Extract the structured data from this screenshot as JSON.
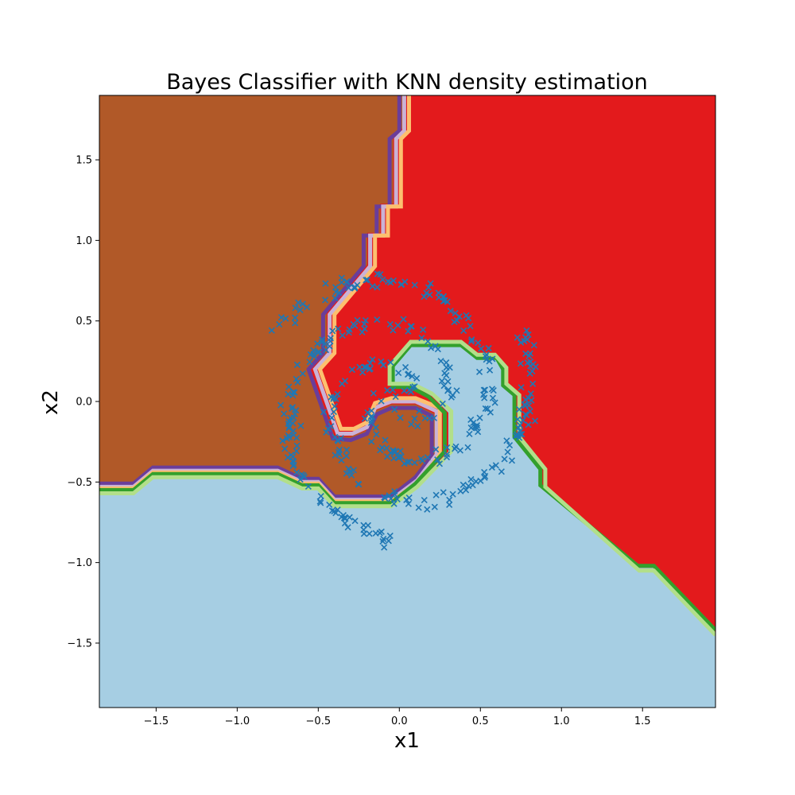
{
  "chart_data": {
    "type": "scatter",
    "title": "Bayes Classifier with KNN density estimation",
    "xlabel": "x1",
    "ylabel": "x2",
    "xlim": [
      -1.85,
      1.95
    ],
    "ylim": [
      -1.9,
      1.9
    ],
    "xticks": [
      -1.5,
      -1.0,
      -0.5,
      0.0,
      0.5,
      1.0,
      1.5
    ],
    "yticks": [
      -1.5,
      -1.0,
      -0.5,
      0.0,
      0.5,
      1.0,
      1.5
    ],
    "xtick_labels": [
      "−1.5",
      "−1.0",
      "−0.5",
      "0.0",
      "0.5",
      "1.0",
      "1.5"
    ],
    "ytick_labels": [
      "−1.5",
      "−1.0",
      "−0.5",
      "0.0",
      "0.5",
      "1.0",
      "1.5"
    ],
    "grid": false,
    "marker": "x",
    "colors": {
      "point": "#1f77b4",
      "region_light_blue": "#a6cee3",
      "region_red": "#e31a1c",
      "region_brown": "#b15928",
      "boundary_purple": "#6a3d9a",
      "boundary_lavender": "#cab2d6",
      "boundary_peach": "#fdbf6f",
      "boundary_green": "#33a02c",
      "boundary_light_green": "#b2df8a"
    },
    "regions": {
      "light_blue": [
        [
          -1.85,
          -1.9
        ],
        [
          -1.85,
          -0.56
        ],
        [
          -1.64,
          -0.56
        ],
        [
          -1.52,
          -0.46
        ],
        [
          -0.75,
          -0.46
        ],
        [
          -0.6,
          -0.53
        ],
        [
          -0.5,
          -0.53
        ],
        [
          -0.4,
          -0.64
        ],
        [
          -0.05,
          -0.64
        ],
        [
          0.1,
          -0.52
        ],
        [
          0.3,
          -0.31
        ],
        [
          0.3,
          -0.07
        ],
        [
          0.2,
          0.03
        ],
        [
          0.08,
          0.1
        ],
        [
          -0.05,
          0.1
        ],
        [
          -0.05,
          0.22
        ],
        [
          0.07,
          0.36
        ],
        [
          0.38,
          0.36
        ],
        [
          0.48,
          0.28
        ],
        [
          0.6,
          0.28
        ],
        [
          0.65,
          0.2
        ],
        [
          0.65,
          0.1
        ],
        [
          0.72,
          0.04
        ],
        [
          0.72,
          -0.22
        ],
        [
          0.88,
          -0.42
        ],
        [
          0.88,
          -0.52
        ],
        [
          1.47,
          -1.03
        ],
        [
          1.57,
          -1.03
        ],
        [
          1.95,
          -1.43
        ],
        [
          1.95,
          -1.9
        ]
      ],
      "red": [
        [
          0.02,
          1.9
        ],
        [
          1.95,
          1.9
        ],
        [
          1.95,
          -1.43
        ],
        [
          1.57,
          -1.03
        ],
        [
          1.47,
          -1.03
        ],
        [
          0.88,
          -0.52
        ],
        [
          0.88,
          -0.42
        ],
        [
          0.72,
          -0.22
        ],
        [
          0.72,
          0.04
        ],
        [
          0.65,
          0.1
        ],
        [
          0.65,
          0.2
        ],
        [
          0.6,
          0.28
        ],
        [
          0.48,
          0.28
        ],
        [
          0.38,
          0.36
        ],
        [
          0.07,
          0.36
        ],
        [
          -0.05,
          0.22
        ],
        [
          -0.05,
          0.1
        ],
        [
          0.08,
          0.1
        ],
        [
          0.2,
          0.03
        ],
        [
          0.3,
          -0.07
        ],
        [
          0.3,
          -0.31
        ],
        [
          0.1,
          -0.52
        ],
        [
          -0.05,
          -0.64
        ],
        [
          -0.4,
          -0.64
        ],
        [
          -0.5,
          -0.53
        ],
        [
          -0.6,
          -0.53
        ],
        [
          -0.75,
          -0.46
        ],
        [
          -1.52,
          -0.46
        ],
        [
          -1.64,
          -0.56
        ],
        [
          -1.85,
          -0.56
        ],
        [
          -1.85,
          -0.52
        ],
        [
          -1.64,
          -0.52
        ],
        [
          -1.52,
          -0.42
        ],
        [
          -0.75,
          -0.42
        ],
        [
          -0.6,
          -0.49
        ],
        [
          -0.5,
          -0.49
        ],
        [
          -0.4,
          -0.6
        ],
        [
          -0.05,
          -0.6
        ],
        [
          0.1,
          -0.48
        ],
        [
          0.22,
          -0.33
        ],
        [
          0.22,
          -0.08
        ],
        [
          0.1,
          -0.02
        ],
        [
          -0.05,
          -0.02
        ],
        [
          -0.15,
          -0.06
        ],
        [
          -0.2,
          -0.18
        ],
        [
          -0.3,
          -0.22
        ],
        [
          -0.4,
          -0.22
        ],
        [
          -0.55,
          0.2
        ],
        [
          -0.45,
          0.3
        ],
        [
          -0.45,
          0.55
        ],
        [
          -0.2,
          0.85
        ],
        [
          -0.2,
          1.05
        ],
        [
          -0.12,
          1.05
        ],
        [
          -0.12,
          1.23
        ],
        [
          -0.04,
          1.23
        ],
        [
          -0.04,
          1.65
        ],
        [
          0.02,
          1.7
        ]
      ],
      "brown": [
        [
          -1.85,
          1.9
        ],
        [
          0.02,
          1.9
        ],
        [
          0.02,
          1.7
        ],
        [
          -0.04,
          1.65
        ],
        [
          -0.04,
          1.23
        ],
        [
          -0.12,
          1.23
        ],
        [
          -0.12,
          1.05
        ],
        [
          -0.2,
          1.05
        ],
        [
          -0.2,
          0.85
        ],
        [
          -0.45,
          0.55
        ],
        [
          -0.45,
          0.3
        ],
        [
          -0.55,
          0.2
        ],
        [
          -0.4,
          -0.22
        ],
        [
          -0.3,
          -0.22
        ],
        [
          -0.2,
          -0.18
        ],
        [
          -0.15,
          -0.06
        ],
        [
          -0.05,
          -0.02
        ],
        [
          0.1,
          -0.02
        ],
        [
          0.22,
          -0.08
        ],
        [
          0.22,
          -0.33
        ],
        [
          0.1,
          -0.48
        ],
        [
          -0.05,
          -0.6
        ],
        [
          -0.4,
          -0.6
        ],
        [
          -0.5,
          -0.49
        ],
        [
          -0.6,
          -0.49
        ],
        [
          -0.75,
          -0.42
        ],
        [
          -1.52,
          -0.42
        ],
        [
          -1.64,
          -0.52
        ],
        [
          -1.85,
          -0.52
        ]
      ]
    },
    "boundaries": [
      {
        "color_key": "boundary_purple",
        "points": [
          [
            0.0,
            1.9
          ],
          [
            0.0,
            1.68
          ],
          [
            -0.06,
            1.63
          ],
          [
            -0.06,
            1.21
          ],
          [
            -0.14,
            1.21
          ],
          [
            -0.14,
            1.03
          ],
          [
            -0.22,
            1.03
          ],
          [
            -0.22,
            0.84
          ],
          [
            -0.47,
            0.54
          ],
          [
            -0.47,
            0.3
          ],
          [
            -0.56,
            0.2
          ],
          [
            -0.41,
            -0.23
          ],
          [
            -0.3,
            -0.24
          ],
          [
            -0.2,
            -0.2
          ],
          [
            -0.14,
            -0.08
          ],
          [
            -0.05,
            -0.04
          ],
          [
            0.1,
            -0.04
          ],
          [
            0.2,
            -0.09
          ],
          [
            0.2,
            -0.34
          ],
          [
            0.1,
            -0.47
          ],
          [
            -0.05,
            -0.59
          ],
          [
            -0.4,
            -0.59
          ],
          [
            -0.5,
            -0.48
          ],
          [
            -0.6,
            -0.48
          ],
          [
            -0.75,
            -0.41
          ],
          [
            -1.52,
            -0.41
          ],
          [
            -1.64,
            -0.51
          ],
          [
            -1.85,
            -0.51
          ]
        ]
      },
      {
        "color_key": "boundary_lavender",
        "points": [
          [
            0.03,
            1.9
          ],
          [
            0.03,
            1.68
          ],
          [
            -0.02,
            1.63
          ],
          [
            -0.02,
            1.21
          ],
          [
            -0.1,
            1.21
          ],
          [
            -0.1,
            1.03
          ],
          [
            -0.18,
            1.03
          ],
          [
            -0.18,
            0.84
          ],
          [
            -0.43,
            0.54
          ],
          [
            -0.43,
            0.3
          ],
          [
            -0.52,
            0.2
          ],
          [
            -0.38,
            -0.2
          ],
          [
            -0.29,
            -0.2
          ],
          [
            -0.2,
            -0.16
          ],
          [
            -0.15,
            -0.04
          ],
          [
            -0.05,
            0.0
          ],
          [
            0.1,
            0.0
          ],
          [
            0.23,
            -0.06
          ],
          [
            0.23,
            -0.33
          ],
          [
            0.11,
            -0.49
          ],
          [
            -0.05,
            -0.61
          ],
          [
            -0.4,
            -0.61
          ],
          [
            -0.5,
            -0.5
          ],
          [
            -0.6,
            -0.5
          ],
          [
            -0.75,
            -0.43
          ],
          [
            -1.52,
            -0.43
          ],
          [
            -1.64,
            -0.53
          ],
          [
            -1.85,
            -0.53
          ]
        ]
      },
      {
        "color_key": "boundary_peach",
        "points": [
          [
            0.06,
            1.9
          ],
          [
            0.06,
            1.68
          ],
          [
            0.01,
            1.63
          ],
          [
            0.01,
            1.21
          ],
          [
            -0.07,
            1.21
          ],
          [
            -0.07,
            1.03
          ],
          [
            -0.15,
            1.03
          ],
          [
            -0.15,
            0.84
          ],
          [
            -0.4,
            0.54
          ],
          [
            -0.4,
            0.3
          ],
          [
            -0.49,
            0.2
          ],
          [
            -0.36,
            -0.17
          ],
          [
            -0.28,
            -0.17
          ],
          [
            -0.2,
            -0.13
          ],
          [
            -0.15,
            -0.01
          ],
          [
            -0.05,
            0.02
          ],
          [
            0.1,
            0.02
          ],
          [
            0.25,
            -0.04
          ],
          [
            0.25,
            -0.33
          ],
          [
            0.12,
            -0.5
          ],
          [
            -0.05,
            -0.62
          ],
          [
            -0.4,
            -0.62
          ],
          [
            -0.5,
            -0.51
          ],
          [
            -0.6,
            -0.51
          ],
          [
            -0.75,
            -0.44
          ],
          [
            -1.52,
            -0.44
          ],
          [
            -1.64,
            -0.54
          ],
          [
            -1.85,
            -0.54
          ]
        ]
      },
      {
        "color_key": "boundary_green",
        "points": [
          [
            -1.85,
            -0.55
          ],
          [
            -1.64,
            -0.55
          ],
          [
            -1.52,
            -0.45
          ],
          [
            -0.75,
            -0.45
          ],
          [
            -0.6,
            -0.52
          ],
          [
            -0.5,
            -0.52
          ],
          [
            -0.4,
            -0.63
          ],
          [
            -0.05,
            -0.63
          ],
          [
            0.1,
            -0.51
          ],
          [
            0.28,
            -0.31
          ],
          [
            0.28,
            -0.07
          ],
          [
            0.18,
            0.03
          ],
          [
            0.07,
            0.09
          ],
          [
            -0.04,
            0.09
          ],
          [
            -0.04,
            0.22
          ],
          [
            0.07,
            0.35
          ],
          [
            0.38,
            0.35
          ],
          [
            0.48,
            0.27
          ],
          [
            0.6,
            0.27
          ],
          [
            0.64,
            0.2
          ],
          [
            0.64,
            0.1
          ],
          [
            0.71,
            0.04
          ],
          [
            0.71,
            -0.22
          ],
          [
            0.87,
            -0.42
          ],
          [
            0.87,
            -0.52
          ],
          [
            1.47,
            -1.02
          ],
          [
            1.57,
            -1.02
          ],
          [
            1.95,
            -1.42
          ]
        ]
      },
      {
        "color_key": "boundary_light_green",
        "points": [
          [
            -1.85,
            -0.57
          ],
          [
            -1.64,
            -0.57
          ],
          [
            -1.52,
            -0.47
          ],
          [
            -0.75,
            -0.47
          ],
          [
            -0.6,
            -0.54
          ],
          [
            -0.5,
            -0.54
          ],
          [
            -0.4,
            -0.65
          ],
          [
            -0.05,
            -0.65
          ],
          [
            0.11,
            -0.53
          ],
          [
            0.32,
            -0.31
          ],
          [
            0.32,
            -0.06
          ],
          [
            0.2,
            0.05
          ],
          [
            0.08,
            0.11
          ],
          [
            -0.06,
            0.11
          ],
          [
            -0.06,
            0.22
          ],
          [
            0.07,
            0.37
          ],
          [
            0.38,
            0.37
          ],
          [
            0.48,
            0.29
          ],
          [
            0.59,
            0.29
          ],
          [
            0.66,
            0.21
          ],
          [
            0.66,
            0.11
          ],
          [
            0.74,
            0.04
          ],
          [
            0.74,
            -0.22
          ],
          [
            0.9,
            -0.42
          ],
          [
            0.9,
            -0.53
          ],
          [
            1.48,
            -1.05
          ],
          [
            1.57,
            -1.05
          ],
          [
            1.95,
            -1.45
          ]
        ]
      }
    ],
    "arms": [
      {
        "theta0": 0.0,
        "theta1": 6.8,
        "n": 140,
        "k": 0.125
      },
      {
        "theta0": 2.094,
        "theta1": 8.894,
        "n": 140,
        "k": 0.125
      },
      {
        "theta0": 4.189,
        "theta1": 10.989,
        "n": 140,
        "k": 0.125
      }
    ]
  }
}
